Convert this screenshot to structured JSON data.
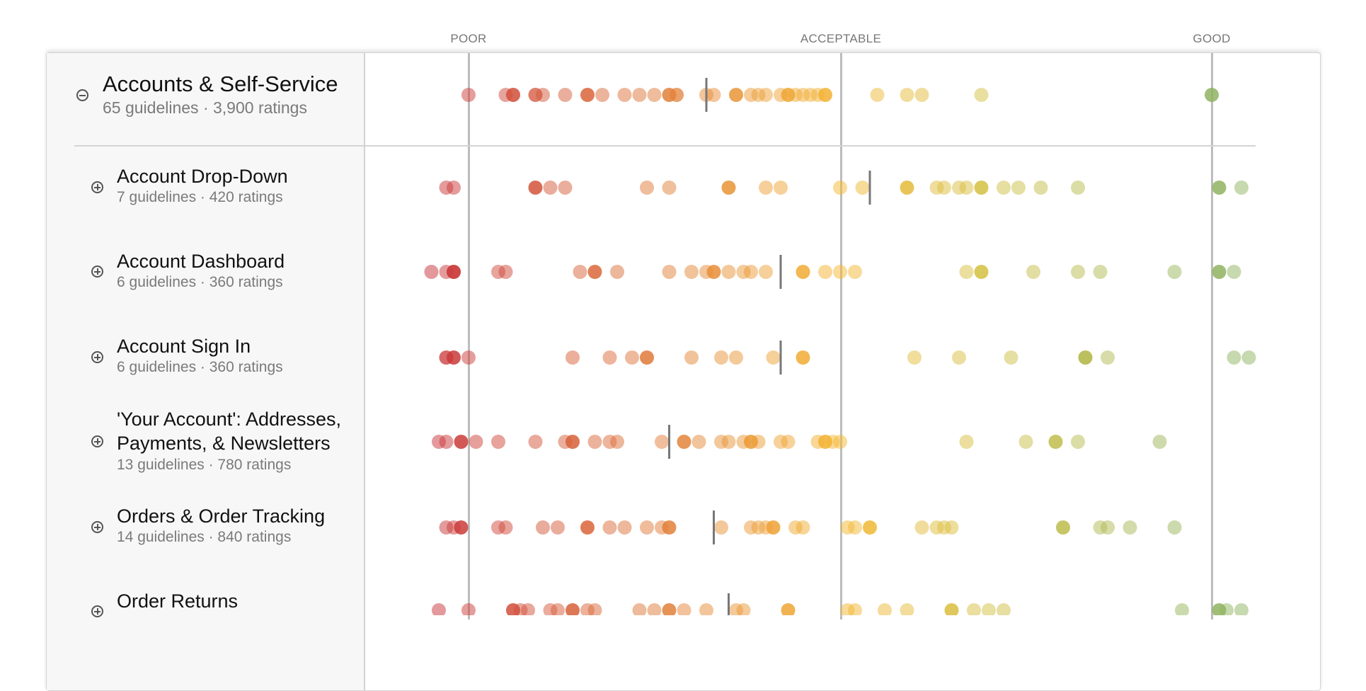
{
  "chart_data": {
    "type": "scatter",
    "title": "",
    "xlabel": "",
    "ylabel": "",
    "scale": {
      "poor": 0,
      "acceptable": 50,
      "good": 100
    },
    "axis_labels": [
      "POOR",
      "ACCEPTABLE",
      "GOOD"
    ],
    "colors": {
      "poor": "#c8323a",
      "mid_low": "#e07b3a",
      "acceptable": "#f5b731",
      "mid_high": "#cfc044",
      "good": "#8fb360"
    },
    "rows": [
      {
        "title": "Accounts & Self-Service",
        "subtitle": "65 guidelines · 3,900 ratings",
        "expanded": true,
        "level": 0,
        "median": 32,
        "values": [
          0,
          5,
          6,
          9,
          9,
          10,
          13,
          16,
          18,
          21,
          23,
          25,
          27,
          28,
          28,
          32,
          33,
          36,
          38,
          39,
          40,
          42,
          43,
          44,
          45,
          46,
          47,
          48,
          55,
          59,
          61,
          69,
          100
        ]
      },
      {
        "title": "Account Drop-Down",
        "subtitle": "7 guidelines · 420 ratings",
        "expanded": false,
        "level": 1,
        "median": 54,
        "values": [
          -3,
          -2,
          9,
          11,
          13,
          24,
          27,
          35,
          40,
          42,
          50,
          53,
          59,
          63,
          64,
          66,
          67,
          69,
          72,
          74,
          77,
          82,
          101,
          104
        ]
      },
      {
        "title": "Account Dashboard",
        "subtitle": "6 guidelines · 360 ratings",
        "expanded": false,
        "level": 1,
        "median": 42,
        "values": [
          -5,
          -3,
          -2,
          -2,
          4,
          5,
          15,
          17,
          20,
          27,
          30,
          32,
          33,
          35,
          37,
          38,
          40,
          45,
          48,
          50,
          52,
          67,
          69,
          76,
          82,
          85,
          95,
          101,
          103
        ]
      },
      {
        "title": "Account Sign In",
        "subtitle": "6 guidelines · 360 ratings",
        "expanded": false,
        "level": 1,
        "median": 42,
        "values": [
          -3,
          -3,
          -2,
          0,
          14,
          19,
          22,
          24,
          30,
          34,
          36,
          41,
          45,
          60,
          66,
          73,
          83,
          83,
          86,
          103,
          105
        ]
      },
      {
        "title": "'Your Account': Addresses, Payments, & Newsletters",
        "subtitle": "13 guidelines · 780 ratings",
        "expanded": false,
        "level": 1,
        "median": 27,
        "values": [
          -4,
          -3,
          -1,
          1,
          4,
          9,
          13,
          14,
          17,
          19,
          20,
          26,
          29,
          31,
          34,
          35,
          37,
          38,
          39,
          42,
          43,
          47,
          48,
          49,
          50,
          67,
          75,
          79,
          82,
          93
        ]
      },
      {
        "title": "Orders & Order Tracking",
        "subtitle": "14 guidelines · 840 ratings",
        "expanded": false,
        "level": 1,
        "median": 33,
        "values": [
          -3,
          -2,
          -1,
          4,
          5,
          10,
          12,
          16,
          19,
          21,
          24,
          26,
          27,
          34,
          38,
          39,
          40,
          41,
          44,
          45,
          51,
          52,
          54,
          61,
          63,
          64,
          65,
          80,
          85,
          86,
          89,
          95
        ]
      },
      {
        "title": "Order Returns",
        "subtitle": "",
        "expanded": false,
        "level": 1,
        "median": 35,
        "values": [
          -4,
          0,
          6,
          7,
          8,
          11,
          12,
          14,
          16,
          17,
          23,
          25,
          27,
          29,
          32,
          36,
          37,
          43,
          51,
          52,
          56,
          59,
          65,
          68,
          70,
          72,
          96,
          101,
          102,
          104
        ]
      }
    ]
  }
}
